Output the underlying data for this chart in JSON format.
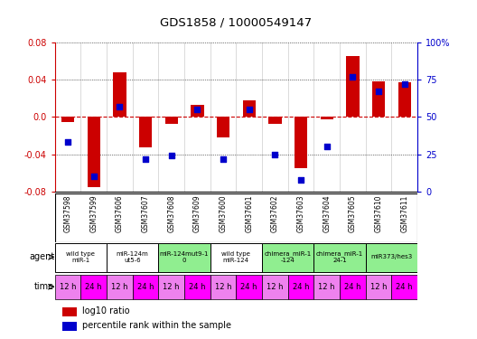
{
  "title": "GDS1858 / 10000549147",
  "samples": [
    "GSM37598",
    "GSM37599",
    "GSM37606",
    "GSM37607",
    "GSM37608",
    "GSM37609",
    "GSM37600",
    "GSM37601",
    "GSM37602",
    "GSM37603",
    "GSM37604",
    "GSM37605",
    "GSM37610",
    "GSM37611"
  ],
  "log10_ratio": [
    -0.005,
    -0.075,
    0.048,
    -0.033,
    -0.007,
    0.013,
    -0.022,
    0.018,
    -0.007,
    -0.055,
    -0.003,
    0.065,
    0.038,
    0.037
  ],
  "percentile_rank": [
    33,
    10,
    57,
    22,
    24,
    55,
    22,
    55,
    25,
    8,
    30,
    77,
    67,
    72
  ],
  "ylim": [
    -0.08,
    0.08
  ],
  "yticks_left": [
    -0.08,
    -0.04,
    0.0,
    0.04,
    0.08
  ],
  "yticks_right": [
    0,
    25,
    50,
    75,
    100
  ],
  "agent_groups": [
    {
      "label": "wild type\nmiR-1",
      "start": 0,
      "end": 2,
      "color": "#ffffff"
    },
    {
      "label": "miR-124m\nut5-6",
      "start": 2,
      "end": 4,
      "color": "#ffffff"
    },
    {
      "label": "miR-124mut9-1\n0",
      "start": 4,
      "end": 6,
      "color": "#90ee90"
    },
    {
      "label": "wild type\nmiR-124",
      "start": 6,
      "end": 8,
      "color": "#ffffff"
    },
    {
      "label": "chimera_miR-1\n-124",
      "start": 8,
      "end": 10,
      "color": "#90ee90"
    },
    {
      "label": "chimera_miR-1\n24-1",
      "start": 10,
      "end": 12,
      "color": "#90ee90"
    },
    {
      "label": "miR373/hes3",
      "start": 12,
      "end": 14,
      "color": "#90ee90"
    }
  ],
  "time_labels": [
    "12 h",
    "24 h",
    "12 h",
    "24 h",
    "12 h",
    "24 h",
    "12 h",
    "24 h",
    "12 h",
    "24 h",
    "12 h",
    "24 h",
    "12 h",
    "24 h"
  ],
  "time_colors_12": "#ee82ee",
  "time_colors_24": "#ff00ff",
  "bar_color": "#cc0000",
  "dot_color": "#0000cc",
  "bg_color": "#ffffff",
  "sample_bg_color": "#c0c0c0",
  "left_axis_color": "#cc0000",
  "right_axis_color": "#0000cc"
}
